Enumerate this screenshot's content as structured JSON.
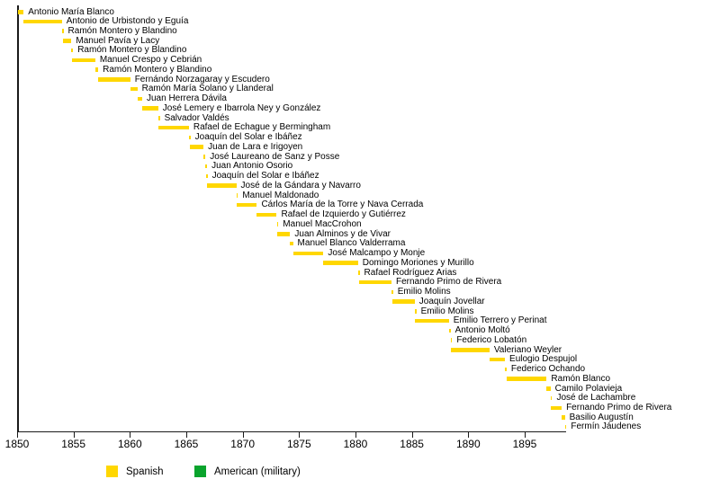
{
  "colors": {
    "background": "#ffffff",
    "axis": "#1a1a1a",
    "text": "#000000",
    "bar_spanish": "#FFD700",
    "bar_american": "#0AA42D"
  },
  "chart_data": {
    "type": "bar",
    "variant": "horizontal-timeline-gantt",
    "title": "",
    "xlabel": "",
    "ylabel": "",
    "grid": false,
    "xlim": [
      1850,
      1898.7
    ],
    "x_ticks": [
      1850,
      1855,
      1860,
      1865,
      1870,
      1875,
      1880,
      1885,
      1890,
      1895
    ],
    "legend": {
      "position": "bottom",
      "entries": [
        {
          "id": "spanish",
          "label": "Spanish",
          "color": "#FFD700"
        },
        {
          "id": "american",
          "label": "American (military)",
          "color": "#0AA42D"
        }
      ]
    },
    "bars": [
      {
        "label": "Antonio María Blanco",
        "start": 1850.1,
        "end": 1850.58,
        "group": "spanish"
      },
      {
        "label": "Antonio de Urbistondo y Eguía",
        "start": 1850.58,
        "end": 1853.97,
        "group": "spanish"
      },
      {
        "label": "Ramón Montero y Blandino",
        "start": 1853.97,
        "end": 1854.09,
        "group": "spanish"
      },
      {
        "label": "Manuel Pavía y Lacy",
        "start": 1854.09,
        "end": 1854.82,
        "group": "spanish"
      },
      {
        "label": "Ramón Montero y Blandino",
        "start": 1854.82,
        "end": 1854.89,
        "group": "spanish"
      },
      {
        "label": "Manuel Crespo y Cebrián",
        "start": 1854.89,
        "end": 1856.93,
        "group": "spanish"
      },
      {
        "label": "Ramón Montero y Blandino",
        "start": 1856.93,
        "end": 1857.19,
        "group": "spanish"
      },
      {
        "label": "Fernándo Norzagaray y Escudero",
        "start": 1857.19,
        "end": 1860.03,
        "group": "spanish"
      },
      {
        "label": "Ramón María Solano y Llanderal",
        "start": 1860.03,
        "end": 1860.66,
        "group": "spanish"
      },
      {
        "label": "Juan Herrera Dávila",
        "start": 1860.66,
        "end": 1861.09,
        "group": "spanish"
      },
      {
        "label": "José Lemery e Ibarrola Ney y González",
        "start": 1861.09,
        "end": 1862.51,
        "group": "spanish"
      },
      {
        "label": "Salvador Valdés",
        "start": 1862.51,
        "end": 1862.56,
        "group": "spanish"
      },
      {
        "label": "Rafael de Echague y Bermingham",
        "start": 1862.56,
        "end": 1865.23,
        "group": "spanish"
      },
      {
        "label": "Joaquín del Solar e Ibáñez",
        "start": 1865.23,
        "end": 1865.32,
        "group": "spanish"
      },
      {
        "label": "Juan de Lara e Irigoyen",
        "start": 1865.32,
        "end": 1866.53,
        "group": "spanish"
      },
      {
        "label": "José Laureano de Sanz y Posse",
        "start": 1866.53,
        "end": 1866.7,
        "group": "spanish"
      },
      {
        "label": "Juan Antonio Osorio",
        "start": 1866.7,
        "end": 1866.74,
        "group": "spanish"
      },
      {
        "label": "Joaquín del Solar e Ibáñez",
        "start": 1866.74,
        "end": 1866.82,
        "group": "spanish"
      },
      {
        "label": "José de la Gándara y Navarro",
        "start": 1866.82,
        "end": 1869.43,
        "group": "spanish"
      },
      {
        "label": "Manuel Maldonado",
        "start": 1869.43,
        "end": 1869.48,
        "group": "spanish"
      },
      {
        "label": "Cárlos María de la Torre y Nava Cerrada",
        "start": 1869.48,
        "end": 1871.26,
        "group": "spanish"
      },
      {
        "label": "Rafael de Izquierdo y Gutiérrez",
        "start": 1871.26,
        "end": 1873.02,
        "group": "spanish"
      },
      {
        "label": "Manuel MacCrohon",
        "start": 1873.02,
        "end": 1873.07,
        "group": "spanish"
      },
      {
        "label": "Juan Alminos y de Vivar",
        "start": 1873.07,
        "end": 1874.21,
        "group": "spanish"
      },
      {
        "label": "Manuel Blanco Valderrama",
        "start": 1874.21,
        "end": 1874.46,
        "group": "spanish"
      },
      {
        "label": "José Malcampo y Monje",
        "start": 1874.46,
        "end": 1877.16,
        "group": "spanish"
      },
      {
        "label": "Domingo Moriones y Murillo",
        "start": 1877.16,
        "end": 1880.22,
        "group": "spanish"
      },
      {
        "label": "Rafael Rodríguez Arias",
        "start": 1880.22,
        "end": 1880.29,
        "group": "spanish"
      },
      {
        "label": "Fernando Primo de Rivera",
        "start": 1880.29,
        "end": 1883.19,
        "group": "spanish"
      },
      {
        "label": "Emilio Molins",
        "start": 1883.19,
        "end": 1883.27,
        "group": "spanish"
      },
      {
        "label": "Joaquín Jovellar",
        "start": 1883.27,
        "end": 1885.25,
        "group": "spanish"
      },
      {
        "label": "Emilio Molins",
        "start": 1885.25,
        "end": 1885.28,
        "group": "spanish"
      },
      {
        "label": "Emilio Terrero y Perinat",
        "start": 1885.28,
        "end": 1888.28,
        "group": "spanish"
      },
      {
        "label": "Antonio Moltó",
        "start": 1888.28,
        "end": 1888.42,
        "group": "spanish"
      },
      {
        "label": "Federico Lobatón",
        "start": 1888.42,
        "end": 1888.46,
        "group": "spanish"
      },
      {
        "label": "Valeriano Weyler",
        "start": 1888.46,
        "end": 1891.88,
        "group": "spanish"
      },
      {
        "label": "Eulogio Despujol",
        "start": 1891.88,
        "end": 1893.25,
        "group": "spanish"
      },
      {
        "label": "Federico Ochando",
        "start": 1893.25,
        "end": 1893.37,
        "group": "spanish"
      },
      {
        "label": "Ramón Blanco",
        "start": 1893.37,
        "end": 1896.95,
        "group": "spanish"
      },
      {
        "label": "Camilo Polavieja",
        "start": 1896.95,
        "end": 1897.29,
        "group": "spanish"
      },
      {
        "label": "José de Lachambre",
        "start": 1897.29,
        "end": 1897.33,
        "group": "spanish"
      },
      {
        "label": "Fernando Primo de Rivera",
        "start": 1897.33,
        "end": 1898.28,
        "group": "spanish"
      },
      {
        "label": "Basilio Augustín",
        "start": 1898.28,
        "end": 1898.56,
        "group": "spanish"
      },
      {
        "label": "Fermín Jáudenes",
        "start": 1898.56,
        "end": 1898.64,
        "group": "spanish"
      }
    ]
  }
}
